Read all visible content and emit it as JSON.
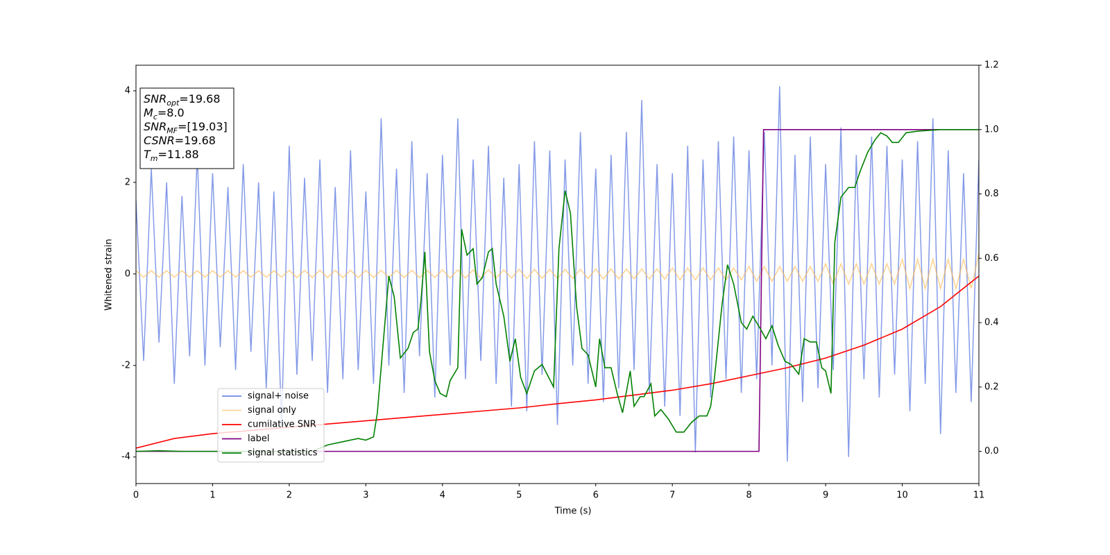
{
  "chart_data": {
    "type": "line",
    "x_label": "Time (s)",
    "y_label": "Whitened strain",
    "xlim": [
      0,
      11
    ],
    "ylim": [
      -4.58,
      4.56
    ],
    "y2lim": [
      -0.1,
      1.2
    ],
    "xticks": [
      0,
      1,
      2,
      3,
      4,
      5,
      6,
      7,
      8,
      9,
      10,
      11
    ],
    "yticks": [
      -4,
      -2,
      0,
      2,
      4
    ],
    "y2ticks": [
      {
        "value": 0,
        "label": "0.0"
      },
      0.2,
      0.4,
      0.6,
      0.8,
      {
        "value": 1,
        "label": "1.0"
      },
      1.2
    ],
    "x": [
      0,
      0.1,
      0.2,
      0.3,
      0.4,
      0.5,
      0.6,
      0.7,
      0.8,
      0.9,
      1,
      1.1,
      1.2,
      1.3,
      1.4,
      1.5,
      1.6,
      1.7,
      1.8,
      1.9,
      2,
      2.1,
      2.2,
      2.3,
      2.4,
      2.5,
      2.6,
      2.7,
      2.8,
      2.9,
      3,
      3.1,
      3.2,
      3.3,
      3.4,
      3.5,
      3.6,
      3.7,
      3.8,
      3.9,
      4,
      4.1,
      4.2,
      4.3,
      4.4,
      4.5,
      4.6,
      4.7,
      4.8,
      4.9,
      5,
      5.1,
      5.2,
      5.3,
      5.4,
      5.5,
      5.6,
      5.7,
      5.8,
      5.9,
      6,
      6.1,
      6.2,
      6.3,
      6.4,
      6.5,
      6.6,
      6.7,
      6.8,
      6.9,
      7,
      7.1,
      7.2,
      7.3,
      7.4,
      7.5,
      7.6,
      7.7,
      7.8,
      7.9,
      8,
      8.1,
      8.2,
      8.3,
      8.4,
      8.5,
      8.6,
      8.7,
      8.8,
      8.9,
      9,
      9.1,
      9.2,
      9.3,
      9.4,
      9.5,
      9.6,
      9.7,
      9.8,
      9.9,
      10,
      10.1,
      10.2,
      10.3,
      10.4,
      10.5,
      10.6,
      10.7,
      10.8,
      10.9,
      11
    ],
    "series": [
      {
        "name": "signal+ noise",
        "color": "#6f88e4",
        "values": [
          1.6,
          -1.9,
          2.3,
          -1.5,
          2.0,
          -2.4,
          1.7,
          -1.8,
          2.6,
          -2.0,
          2.2,
          -1.6,
          1.9,
          -2.1,
          2.4,
          -1.7,
          2.0,
          -2.5,
          1.8,
          -3.3,
          2.8,
          -2.2,
          2.1,
          -1.9,
          2.5,
          -2.6,
          1.9,
          -2.3,
          2.7,
          -2.1,
          1.8,
          -2.4,
          3.4,
          -2.0,
          2.3,
          -2.6,
          2.9,
          -1.8,
          2.2,
          -2.7,
          2.6,
          -2.0,
          3.4,
          -2.3,
          2.5,
          -1.9,
          2.8,
          -2.4,
          2.1,
          -2.9,
          2.4,
          -3.0,
          2.9,
          -2.2,
          2.7,
          -3.3,
          2.5,
          -2.0,
          3.1,
          -2.4,
          2.3,
          -2.8,
          2.6,
          -2.5,
          3.1,
          -2.1,
          3.8,
          -2.6,
          2.4,
          -2.9,
          2.2,
          -3.1,
          2.8,
          -3.9,
          2.5,
          -2.7,
          2.9,
          -2.3,
          3.0,
          -2.6,
          2.7,
          -2.3,
          3.1,
          -2.0,
          4.1,
          -4.1,
          2.6,
          -2.8,
          3.0,
          -2.5,
          2.4,
          -2.1,
          3.2,
          -4.0,
          2.6,
          -2.3,
          3.0,
          -2.7,
          2.8,
          -2.2,
          2.5,
          -3.0,
          2.9,
          -2.4,
          3.4,
          -3.5,
          2.7,
          -2.6,
          2.2,
          -2.8,
          2.5
        ]
      },
      {
        "name": "signal only",
        "color": "#ffb84d",
        "values": [
          0.07,
          -0.07,
          0.07,
          -0.07,
          0.07,
          -0.07,
          0.07,
          -0.07,
          0.07,
          -0.07,
          0.07,
          -0.07,
          0.07,
          -0.07,
          0.07,
          -0.07,
          0.07,
          -0.07,
          0.07,
          -0.07,
          0.08,
          -0.08,
          0.08,
          -0.08,
          0.08,
          -0.08,
          0.08,
          -0.08,
          0.08,
          -0.08,
          0.08,
          -0.08,
          0.08,
          -0.08,
          0.08,
          -0.08,
          0.08,
          -0.08,
          0.08,
          -0.08,
          0.09,
          -0.09,
          0.09,
          -0.09,
          0.09,
          -0.09,
          0.09,
          -0.09,
          0.09,
          -0.09,
          0.1,
          -0.1,
          0.1,
          -0.1,
          0.1,
          -0.1,
          0.1,
          -0.1,
          0.1,
          -0.1,
          0.11,
          -0.11,
          0.11,
          -0.11,
          0.11,
          -0.11,
          0.11,
          -0.11,
          0.11,
          -0.11,
          0.13,
          -0.13,
          0.13,
          -0.13,
          0.13,
          -0.13,
          0.13,
          -0.13,
          0.13,
          -0.13,
          0.16,
          -0.16,
          0.16,
          -0.16,
          0.16,
          -0.16,
          0.16,
          -0.16,
          0.16,
          -0.16,
          0.22,
          -0.22,
          0.22,
          -0.22,
          0.22,
          -0.22,
          0.22,
          -0.22,
          0.22,
          -0.22,
          0.32,
          -0.32,
          0.32,
          -0.32,
          0.32,
          -0.32,
          0.32,
          -0.32,
          0.32,
          -0.32,
          0.45
        ]
      },
      {
        "name": "cumilative SNR",
        "color": "#ff0000",
        "axis": "y2",
        "x": [
          0,
          0.5,
          1,
          1.5,
          2,
          2.5,
          3,
          3.5,
          4,
          4.5,
          5,
          5.5,
          6,
          6.5,
          7,
          7.5,
          8,
          8.5,
          9,
          9.5,
          10,
          10.5,
          11
        ],
        "values": [
          0.01,
          0.04,
          0.055,
          0.065,
          0.075,
          0.085,
          0.095,
          0.105,
          0.115,
          0.125,
          0.135,
          0.148,
          0.16,
          0.175,
          0.19,
          0.21,
          0.235,
          0.26,
          0.29,
          0.33,
          0.38,
          0.45,
          0.545
        ]
      },
      {
        "name": "label",
        "color": "#800080",
        "axis": "y2",
        "x": [
          0,
          8.13,
          8.19,
          11
        ],
        "values": [
          0,
          0,
          1,
          1
        ]
      },
      {
        "name": "signal statistics",
        "color": "#008000",
        "axis": "y2",
        "x": [
          0,
          0.3,
          0.6,
          2.3,
          2.5,
          2.7,
          2.9,
          3.0,
          3.1,
          3.15,
          3.3,
          3.37,
          3.45,
          3.55,
          3.62,
          3.68,
          3.72,
          3.77,
          3.83,
          3.9,
          3.97,
          4.05,
          4.1,
          4.2,
          4.25,
          4.32,
          4.4,
          4.45,
          4.52,
          4.6,
          4.65,
          4.7,
          4.8,
          4.88,
          4.95,
          5.02,
          5.1,
          5.2,
          5.3,
          5.45,
          5.52,
          5.6,
          5.67,
          5.75,
          5.82,
          5.9,
          6.0,
          6.05,
          6.12,
          6.2,
          6.28,
          6.35,
          6.45,
          6.5,
          6.58,
          6.63,
          6.72,
          6.77,
          6.85,
          6.95,
          7.05,
          7.15,
          7.25,
          7.35,
          7.45,
          7.5,
          7.55,
          7.65,
          7.72,
          7.8,
          7.9,
          7.97,
          8.05,
          8.15,
          8.22,
          8.3,
          8.38,
          8.47,
          8.55,
          8.65,
          8.72,
          8.8,
          8.88,
          8.95,
          9.0,
          9.07,
          9.12,
          9.2,
          9.3,
          9.38,
          9.45,
          9.55,
          9.65,
          9.72,
          9.8,
          9.87,
          9.95,
          10.05,
          10.2,
          10.5,
          11
        ],
        "values": [
          0,
          0.002,
          0,
          0,
          0.02,
          0.03,
          0.04,
          0.035,
          0.045,
          0.12,
          0.545,
          0.48,
          0.29,
          0.32,
          0.37,
          0.38,
          0.47,
          0.62,
          0.31,
          0.22,
          0.18,
          0.17,
          0.22,
          0.26,
          0.69,
          0.61,
          0.63,
          0.52,
          0.54,
          0.62,
          0.63,
          0.52,
          0.42,
          0.28,
          0.35,
          0.23,
          0.18,
          0.25,
          0.27,
          0.2,
          0.63,
          0.81,
          0.74,
          0.45,
          0.32,
          0.3,
          0.2,
          0.35,
          0.26,
          0.26,
          0.18,
          0.12,
          0.25,
          0.14,
          0.17,
          0.17,
          0.21,
          0.11,
          0.13,
          0.1,
          0.06,
          0.06,
          0.09,
          0.11,
          0.11,
          0.14,
          0.23,
          0.46,
          0.58,
          0.52,
          0.4,
          0.38,
          0.42,
          0.38,
          0.35,
          0.39,
          0.33,
          0.28,
          0.27,
          0.24,
          0.35,
          0.34,
          0.34,
          0.26,
          0.25,
          0.18,
          0.65,
          0.79,
          0.82,
          0.82,
          0.87,
          0.93,
          0.97,
          0.99,
          0.98,
          0.96,
          0.96,
          0.99,
          0.995,
          1,
          1
        ]
      }
    ],
    "annotations": [
      [
        "SNR",
        "opt",
        "=19.68"
      ],
      [
        "M",
        "c",
        "=8.0"
      ],
      [
        "SNR",
        "MF",
        "=[19.03]"
      ],
      [
        "CSNR",
        "=19.68"
      ],
      [
        "T",
        "m",
        "=11.88"
      ]
    ]
  }
}
